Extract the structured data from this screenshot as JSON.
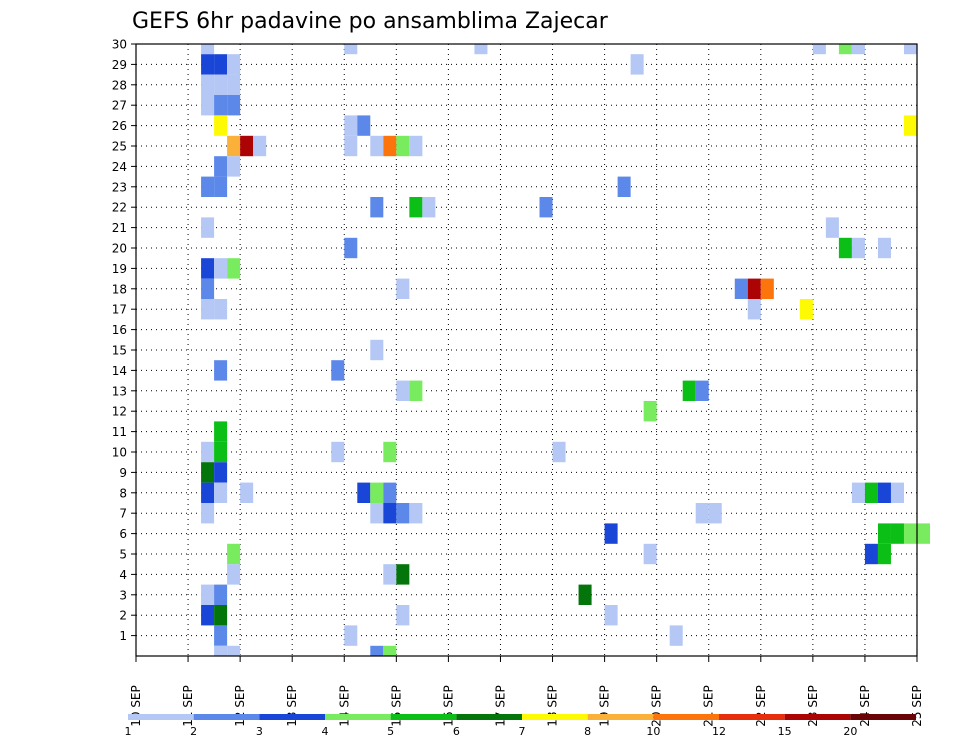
{
  "chart_data": {
    "type": "heatmap",
    "title": "GEFS 6hr padavine po ansamblima Zajecar",
    "x_ticks": [
      "10 SEP",
      "11 SEP",
      "12 SEP",
      "13 SEP",
      "14 SEP",
      "15 SEP",
      "16 SEP",
      "17 SEP",
      "18 SEP",
      "19 SEP",
      "20 SEP",
      "21 SEP",
      "22 SEP",
      "23 SEP",
      "24 SEP",
      "25 SEP"
    ],
    "y_ticks": [
      "1",
      "2",
      "3",
      "4",
      "5",
      "6",
      "7",
      "8",
      "9",
      "10",
      "11",
      "12",
      "13",
      "14",
      "15",
      "16",
      "17",
      "18",
      "19",
      "20",
      "21",
      "22",
      "23",
      "24",
      "25",
      "26",
      "27",
      "28",
      "29",
      "30"
    ],
    "x_range": [
      "10 SEP",
      "25 SEP"
    ],
    "y_range": [
      0,
      30
    ],
    "time_step_hours": 6,
    "grid": true,
    "legend": {
      "placement": "bottom",
      "bins": [
        {
          "label": "1",
          "color": "#b4c7f5"
        },
        {
          "label": "2",
          "color": "#5c88ea"
        },
        {
          "label": "3",
          "color": "#1a46d8"
        },
        {
          "label": "4",
          "color": "#78ec5e"
        },
        {
          "label": "5",
          "color": "#0cbf16"
        },
        {
          "label": "6",
          "color": "#04750a"
        },
        {
          "label": "7",
          "color": "#fdfa04"
        },
        {
          "label": "8",
          "color": "#fbb03a"
        },
        {
          "label": "10",
          "color": "#fb740c"
        },
        {
          "label": "12",
          "color": "#e62e0c"
        },
        {
          "label": "15",
          "color": "#ac0404"
        },
        {
          "label": "20",
          "color": "#6a0406"
        }
      ]
    },
    "cells": [
      {
        "step": 5,
        "member": 30,
        "bin": 0
      },
      {
        "step": 16,
        "member": 30,
        "bin": 0
      },
      {
        "step": 26,
        "member": 30,
        "bin": 0
      },
      {
        "step": 52,
        "member": 30,
        "bin": 0
      },
      {
        "step": 54,
        "member": 30,
        "bin": 3
      },
      {
        "step": 55,
        "member": 30,
        "bin": 0
      },
      {
        "step": 59,
        "member": 30,
        "bin": 0
      },
      {
        "step": 5,
        "member": 29,
        "bin": 2
      },
      {
        "step": 6,
        "member": 29,
        "bin": 2
      },
      {
        "step": 7,
        "member": 29,
        "bin": 0
      },
      {
        "step": 38,
        "member": 29,
        "bin": 0
      },
      {
        "step": 5,
        "member": 28,
        "bin": 0
      },
      {
        "step": 6,
        "member": 28,
        "bin": 0
      },
      {
        "step": 7,
        "member": 28,
        "bin": 0
      },
      {
        "step": 5,
        "member": 27,
        "bin": 0
      },
      {
        "step": 6,
        "member": 27,
        "bin": 1
      },
      {
        "step": 7,
        "member": 27,
        "bin": 1
      },
      {
        "step": 6,
        "member": 26,
        "bin": 6
      },
      {
        "step": 16,
        "member": 26,
        "bin": 0
      },
      {
        "step": 17,
        "member": 26,
        "bin": 1
      },
      {
        "step": 59,
        "member": 26,
        "bin": 6
      },
      {
        "step": 7,
        "member": 25,
        "bin": 7
      },
      {
        "step": 8,
        "member": 25,
        "bin": 10
      },
      {
        "step": 9,
        "member": 25,
        "bin": 0
      },
      {
        "step": 16,
        "member": 25,
        "bin": 0
      },
      {
        "step": 18,
        "member": 25,
        "bin": 0
      },
      {
        "step": 19,
        "member": 25,
        "bin": 8
      },
      {
        "step": 20,
        "member": 25,
        "bin": 3
      },
      {
        "step": 21,
        "member": 25,
        "bin": 0
      },
      {
        "step": 6,
        "member": 24,
        "bin": 1
      },
      {
        "step": 7,
        "member": 24,
        "bin": 0
      },
      {
        "step": 5,
        "member": 23,
        "bin": 1
      },
      {
        "step": 6,
        "member": 23,
        "bin": 1
      },
      {
        "step": 37,
        "member": 23,
        "bin": 1
      },
      {
        "step": 18,
        "member": 22,
        "bin": 1
      },
      {
        "step": 21,
        "member": 22,
        "bin": 4
      },
      {
        "step": 22,
        "member": 22,
        "bin": 0
      },
      {
        "step": 31,
        "member": 22,
        "bin": 1
      },
      {
        "step": 5,
        "member": 21,
        "bin": 0
      },
      {
        "step": 53,
        "member": 21,
        "bin": 0
      },
      {
        "step": 16,
        "member": 20,
        "bin": 1
      },
      {
        "step": 54,
        "member": 20,
        "bin": 4
      },
      {
        "step": 55,
        "member": 20,
        "bin": 0
      },
      {
        "step": 57,
        "member": 20,
        "bin": 0
      },
      {
        "step": 5,
        "member": 19,
        "bin": 2
      },
      {
        "step": 6,
        "member": 19,
        "bin": 0
      },
      {
        "step": 7,
        "member": 19,
        "bin": 3
      },
      {
        "step": 5,
        "member": 18,
        "bin": 1
      },
      {
        "step": 20,
        "member": 18,
        "bin": 0
      },
      {
        "step": 46,
        "member": 18,
        "bin": 1
      },
      {
        "step": 47,
        "member": 18,
        "bin": 10
      },
      {
        "step": 48,
        "member": 18,
        "bin": 8
      },
      {
        "step": 5,
        "member": 17,
        "bin": 0
      },
      {
        "step": 6,
        "member": 17,
        "bin": 0
      },
      {
        "step": 47,
        "member": 17,
        "bin": 0
      },
      {
        "step": 51,
        "member": 17,
        "bin": 6
      },
      {
        "step": 18,
        "member": 15,
        "bin": 0
      },
      {
        "step": 6,
        "member": 14,
        "bin": 1
      },
      {
        "step": 15,
        "member": 14,
        "bin": 1
      },
      {
        "step": 20,
        "member": 13,
        "bin": 0
      },
      {
        "step": 21,
        "member": 13,
        "bin": 3
      },
      {
        "step": 42,
        "member": 13,
        "bin": 4
      },
      {
        "step": 43,
        "member": 13,
        "bin": 1
      },
      {
        "step": 39,
        "member": 12,
        "bin": 3
      },
      {
        "step": 6,
        "member": 11,
        "bin": 4
      },
      {
        "step": 5,
        "member": 10,
        "bin": 0
      },
      {
        "step": 6,
        "member": 10,
        "bin": 4
      },
      {
        "step": 15,
        "member": 10,
        "bin": 0
      },
      {
        "step": 19,
        "member": 10,
        "bin": 3
      },
      {
        "step": 32,
        "member": 10,
        "bin": 0
      },
      {
        "step": 5,
        "member": 9,
        "bin": 5
      },
      {
        "step": 6,
        "member": 9,
        "bin": 2
      },
      {
        "step": 5,
        "member": 8,
        "bin": 2
      },
      {
        "step": 6,
        "member": 8,
        "bin": 0
      },
      {
        "step": 8,
        "member": 8,
        "bin": 0
      },
      {
        "step": 17,
        "member": 8,
        "bin": 2
      },
      {
        "step": 18,
        "member": 8,
        "bin": 3
      },
      {
        "step": 19,
        "member": 8,
        "bin": 1
      },
      {
        "step": 55,
        "member": 8,
        "bin": 0
      },
      {
        "step": 56,
        "member": 8,
        "bin": 4
      },
      {
        "step": 57,
        "member": 8,
        "bin": 2
      },
      {
        "step": 58,
        "member": 8,
        "bin": 0
      },
      {
        "step": 5,
        "member": 7,
        "bin": 0
      },
      {
        "step": 18,
        "member": 7,
        "bin": 0
      },
      {
        "step": 19,
        "member": 7,
        "bin": 2
      },
      {
        "step": 20,
        "member": 7,
        "bin": 1
      },
      {
        "step": 21,
        "member": 7,
        "bin": 0
      },
      {
        "step": 43,
        "member": 7,
        "bin": 0
      },
      {
        "step": 44,
        "member": 7,
        "bin": 0
      },
      {
        "step": 36,
        "member": 6,
        "bin": 2
      },
      {
        "step": 57,
        "member": 6,
        "bin": 4
      },
      {
        "step": 58,
        "member": 6,
        "bin": 4
      },
      {
        "step": 59,
        "member": 6,
        "bin": 3
      },
      {
        "step": 60,
        "member": 6,
        "bin": 3
      },
      {
        "step": 7,
        "member": 5,
        "bin": 3
      },
      {
        "step": 39,
        "member": 5,
        "bin": 0
      },
      {
        "step": 56,
        "member": 5,
        "bin": 2
      },
      {
        "step": 57,
        "member": 5,
        "bin": 4
      },
      {
        "step": 7,
        "member": 4,
        "bin": 0
      },
      {
        "step": 19,
        "member": 4,
        "bin": 0
      },
      {
        "step": 20,
        "member": 4,
        "bin": 5
      },
      {
        "step": 5,
        "member": 3,
        "bin": 0
      },
      {
        "step": 6,
        "member": 3,
        "bin": 1
      },
      {
        "step": 34,
        "member": 3,
        "bin": 5
      },
      {
        "step": 5,
        "member": 2,
        "bin": 2
      },
      {
        "step": 6,
        "member": 2,
        "bin": 5
      },
      {
        "step": 20,
        "member": 2,
        "bin": 0
      },
      {
        "step": 36,
        "member": 2,
        "bin": 0
      },
      {
        "step": 6,
        "member": 1,
        "bin": 1
      },
      {
        "step": 16,
        "member": 1,
        "bin": 0
      },
      {
        "step": 41,
        "member": 1,
        "bin": 0
      },
      {
        "step": 6,
        "member": 0,
        "bin": 0
      },
      {
        "step": 7,
        "member": 0,
        "bin": 0
      },
      {
        "step": 18,
        "member": 0,
        "bin": 1
      },
      {
        "step": 19,
        "member": 0,
        "bin": 3
      }
    ]
  }
}
